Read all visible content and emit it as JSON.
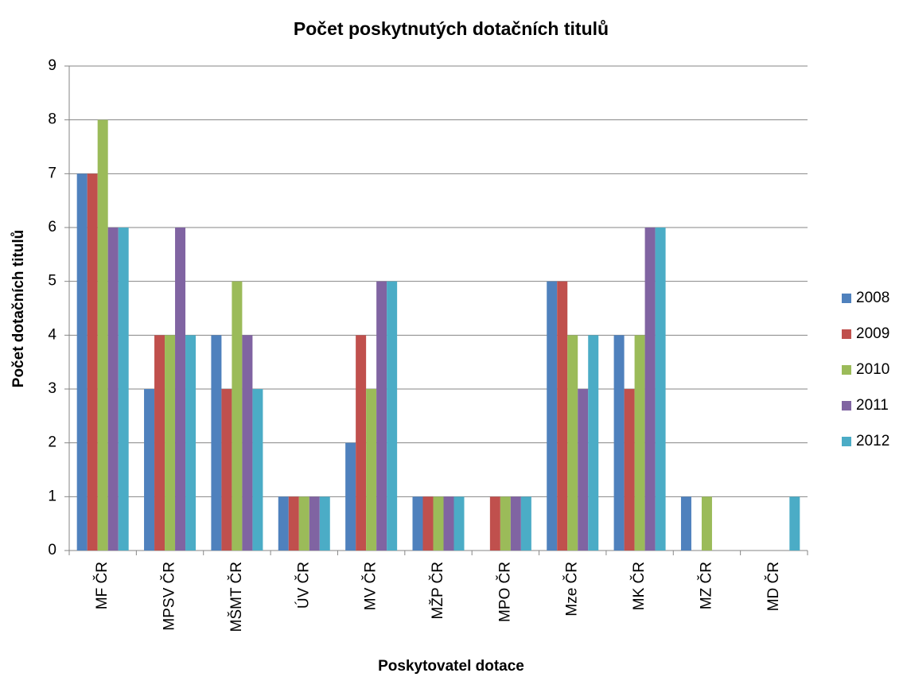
{
  "chart_data": {
    "type": "bar",
    "title": "Počet poskytnutých dotačních titulů",
    "x_label": "Poskytovatel dotace",
    "y_label": "Počet dotačních titulů",
    "categories": [
      "MF ČR",
      "MPSV ČR",
      "MŠMT ČR",
      "ÚV ČR",
      "MV ČR",
      "MŽP ČR",
      "MPO ČR",
      "Mze ČR",
      "MK ČR",
      "MZ ČR",
      "MD ČR"
    ],
    "series": [
      {
        "name": "2008",
        "color": "#4f81bd",
        "values": [
          7,
          3,
          4,
          1,
          2,
          1,
          0,
          5,
          4,
          1,
          0
        ]
      },
      {
        "name": "2009",
        "color": "#c0504d",
        "values": [
          7,
          4,
          3,
          1,
          4,
          1,
          1,
          5,
          3,
          0,
          0
        ]
      },
      {
        "name": "2010",
        "color": "#9bbb59",
        "values": [
          8,
          4,
          5,
          1,
          3,
          1,
          1,
          4,
          4,
          1,
          0
        ]
      },
      {
        "name": "2011",
        "color": "#8064a2",
        "values": [
          6,
          6,
          4,
          1,
          5,
          1,
          1,
          3,
          6,
          0,
          0
        ]
      },
      {
        "name": "2012",
        "color": "#4bacc6",
        "values": [
          6,
          4,
          3,
          1,
          5,
          1,
          1,
          4,
          6,
          0,
          1
        ]
      }
    ],
    "ylim": [
      0,
      9
    ],
    "yticks": [
      0,
      1,
      2,
      3,
      4,
      5,
      6,
      7,
      8,
      9
    ],
    "grid": true,
    "legend": "right"
  }
}
